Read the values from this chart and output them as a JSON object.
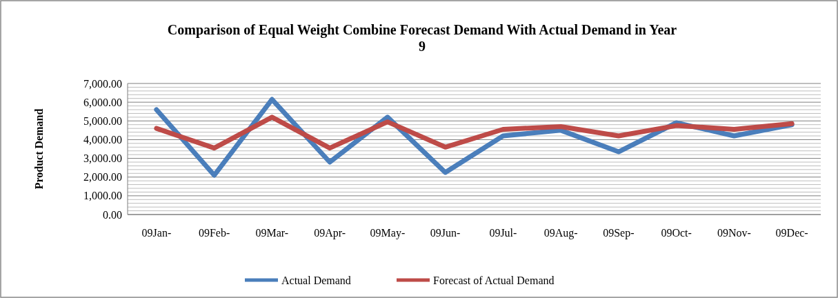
{
  "chart_data": {
    "type": "line",
    "title": "Comparison of Equal Weight Combine Forecast Demand With Actual Demand in Year 9",
    "ylabel": "Product Demand",
    "categories": [
      "09Jan-",
      "09Feb-",
      "09Mar-",
      "09Apr-",
      "09May-",
      "09Jun-",
      "09Jul-",
      "09Aug-",
      "09Sep-",
      "09Oct-",
      "09Nov-",
      "09Dec-"
    ],
    "series": [
      {
        "name": "Actual Demand",
        "color": "#4a7ebb",
        "values": [
          5600,
          2100,
          6150,
          2800,
          5200,
          2250,
          4200,
          4500,
          3350,
          4900,
          4200,
          4800
        ]
      },
      {
        "name": "Forecast of Actual Demand",
        "color": "#be4b48",
        "values": [
          4600,
          3550,
          5200,
          3550,
          4950,
          3600,
          4550,
          4700,
          4200,
          4750,
          4550,
          4850
        ]
      }
    ],
    "ylim": [
      0,
      7000
    ],
    "yticks": [
      {
        "value": 0,
        "label": "0.00"
      },
      {
        "value": 1000,
        "label": "1,000.00"
      },
      {
        "value": 2000,
        "label": "2,000.00"
      },
      {
        "value": 3000,
        "label": "3,000.00"
      },
      {
        "value": 4000,
        "label": "4,000.00"
      },
      {
        "value": 5000,
        "label": "5,000.00"
      },
      {
        "value": 6000,
        "label": "6,000.00"
      },
      {
        "value": 7000,
        "label": "7,000.00"
      }
    ],
    "grid": "y",
    "legend": "bottom",
    "marker": "none",
    "line_style": "solid"
  }
}
